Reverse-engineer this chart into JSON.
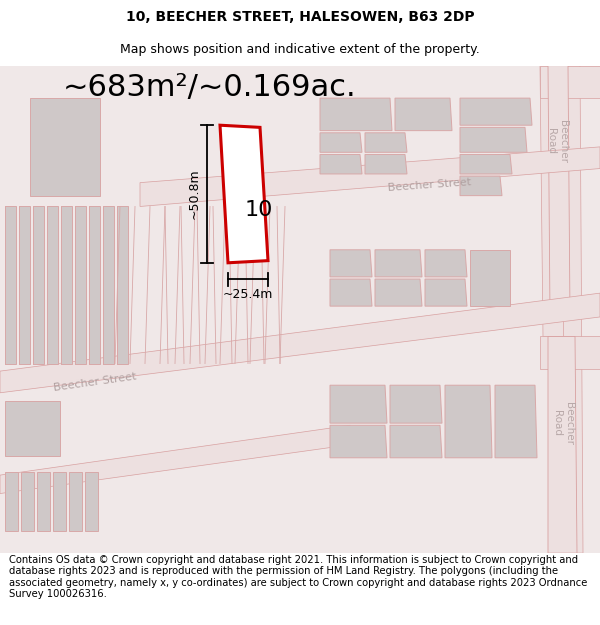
{
  "title_line1": "10, BEECHER STREET, HALESOWEN, B63 2DP",
  "title_line2": "Map shows position and indicative extent of the property.",
  "area_text": "~683m²/~0.169ac.",
  "label_number": "10",
  "dim_height": "~50.8m",
  "dim_width": "~25.4m",
  "footer_text": "Contains OS data © Crown copyright and database right 2021. This information is subject to Crown copyright and database rights 2023 and is reproduced with the permission of HM Land Registry. The polygons (including the associated geometry, namely x, y co-ordinates) are subject to Crown copyright and database rights 2023 Ordnance Survey 100026316.",
  "bg_color": "#f0e8e8",
  "road_fill": "#ede0e0",
  "building_fill": "#cfc8c8",
  "building_edge": "#d8a8a8",
  "road_edge": "#d8a0a0",
  "highlight_fill": "#ffffff",
  "highlight_edge": "#cc0000",
  "street_label_color": "#b0a0a0",
  "road_label_color": "#b8a8a8",
  "dim_color": "#000000",
  "title_fontsize": 10,
  "subtitle_fontsize": 9,
  "area_fontsize": 22,
  "footer_fontsize": 7.2,
  "label_fontsize": 16,
  "street_fontsize": 8,
  "road_fontsize": 7.5
}
